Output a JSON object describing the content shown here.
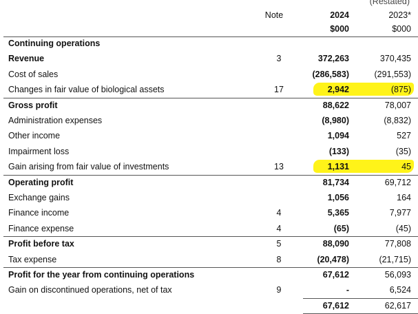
{
  "header": {
    "restated": "(Restated)",
    "note": "Note",
    "current_year": "2024",
    "prior_year": "2023*",
    "current_unit": "$000",
    "prior_unit": "$000"
  },
  "rows": [
    {
      "label": "Continuing operations",
      "bold": true
    },
    {
      "label": "Revenue",
      "note": "3",
      "current": "372,263",
      "prior": "370,435",
      "bold": true
    },
    {
      "label": "Cost of sales",
      "current": "(286,583)",
      "prior": "(291,553)"
    },
    {
      "label": "Changes in fair value of biological assets",
      "note": "17",
      "current": "2,942",
      "prior": "(875)",
      "highlight": true
    },
    {
      "label": "Gross profit",
      "current": "88,622",
      "prior": "78,007",
      "bold": true,
      "ruled": true
    },
    {
      "label": "Administration expenses",
      "current": "(8,980)",
      "prior": "(8,832)"
    },
    {
      "label": "Other income",
      "current": "1,094",
      "prior": "527"
    },
    {
      "label": "Impairment loss",
      "current": "(133)",
      "prior": "(35)"
    },
    {
      "label": "Gain arising from fair value of investments",
      "note": "13",
      "current": "1,131",
      "prior": "45",
      "highlight": true
    },
    {
      "label": "Operating profit",
      "current": "81,734",
      "prior": "69,712",
      "bold": true,
      "ruled": true
    },
    {
      "label": "Exchange gains",
      "current": "1,056",
      "prior": "164"
    },
    {
      "label": "Finance income",
      "note": "4",
      "current": "5,365",
      "prior": "7,977"
    },
    {
      "label": "Finance expense",
      "note": "4",
      "current": "(65)",
      "prior": "(45)"
    },
    {
      "label": "Profit before tax",
      "note": "5",
      "current": "88,090",
      "prior": "77,808",
      "bold": true,
      "ruled": true
    },
    {
      "label": "Tax expense",
      "note": "8",
      "current": "(20,478)",
      "prior": "(21,715)"
    },
    {
      "label": "Profit for the year from continuing operations",
      "current": "67,612",
      "prior": "56,093",
      "bold": true,
      "ruled": true
    },
    {
      "label": "Gain on discontinued operations, net of tax",
      "note": "9",
      "current": "-",
      "prior": "6,524"
    },
    {
      "current": "67,612",
      "prior": "62,617",
      "total": true
    }
  ]
}
